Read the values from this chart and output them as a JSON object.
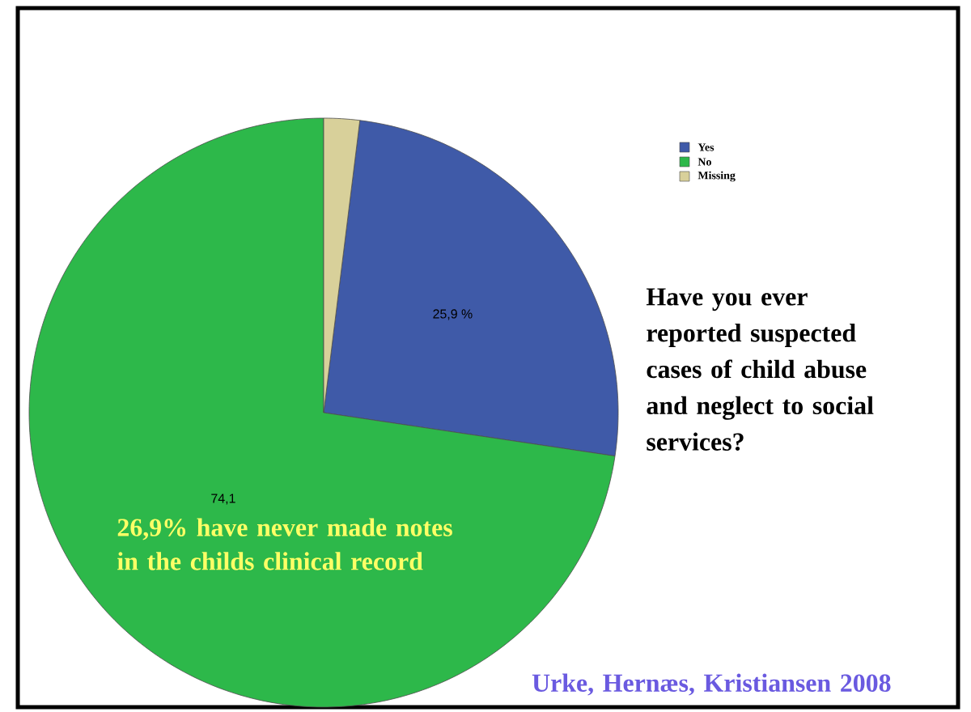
{
  "chart_data": {
    "type": "pie",
    "title": "Have you ever reported suspected cases of child abuse and neglect to social services?",
    "categories": [
      "Yes",
      "No",
      "Missing"
    ],
    "values": [
      25.9,
      74.1,
      2
    ],
    "colors": [
      "#3f5aa8",
      "#2db84a",
      "#d8d09a"
    ],
    "value_labels": [
      "25,9 %",
      "74,1",
      null
    ],
    "legend": "top right",
    "annotations": [
      "26,9% have never made notes in the childs clinical record",
      "Urke, Hernæs, Kristiansen 2008"
    ]
  }
}
